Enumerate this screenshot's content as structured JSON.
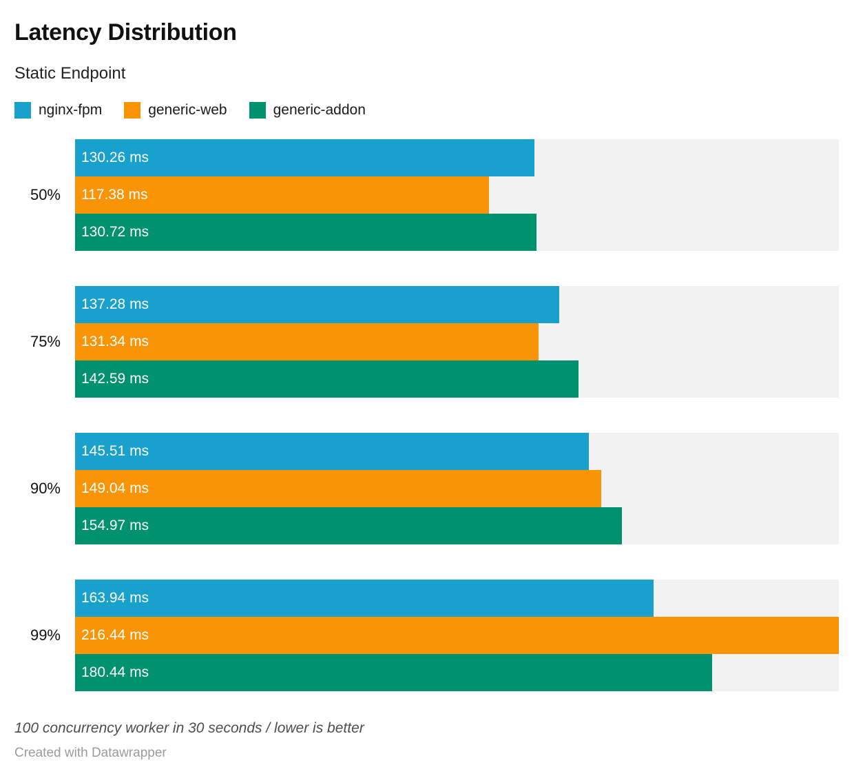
{
  "header": {
    "title": "Latency Distribution",
    "subtitle": "Static Endpoint"
  },
  "legend": {
    "items": [
      {
        "label": "nginx-fpm",
        "color": "#18a1cd"
      },
      {
        "label": "generic-web",
        "color": "#f89406"
      },
      {
        "label": "generic-addon",
        "color": "#00916f"
      }
    ]
  },
  "chart_data": {
    "type": "bar",
    "orientation": "horizontal",
    "title": "Latency Distribution",
    "subtitle": "Static Endpoint",
    "categories": [
      "50%",
      "75%",
      "90%",
      "99%"
    ],
    "series": [
      {
        "name": "nginx-fpm",
        "color": "#18a1cd",
        "values": [
          130.26,
          137.28,
          145.51,
          163.94
        ]
      },
      {
        "name": "generic-web",
        "color": "#f89406",
        "values": [
          117.38,
          131.34,
          149.04,
          216.44
        ]
      },
      {
        "name": "generic-addon",
        "color": "#00916f",
        "values": [
          130.72,
          142.59,
          154.97,
          180.44
        ]
      }
    ],
    "value_suffix": " ms",
    "value_decimals": 2,
    "xlim": [
      0,
      216.44
    ],
    "grid": false,
    "legend_position": "top",
    "bar_label_position": "inside-left",
    "track_color": "#f2f2f2"
  },
  "footer": {
    "note": "100 concurrency worker in 30 seconds / lower is better",
    "attribution": "Created with Datawrapper"
  },
  "colors": {
    "background": "#ffffff",
    "track": "#f2f2f2",
    "title_text": "#111111",
    "subtitle_text": "#222222",
    "category_text": "#111111",
    "bar_label_text": "#ffffff",
    "note_text": "#4d4d4d",
    "attribution_text": "#9b9b9b"
  }
}
